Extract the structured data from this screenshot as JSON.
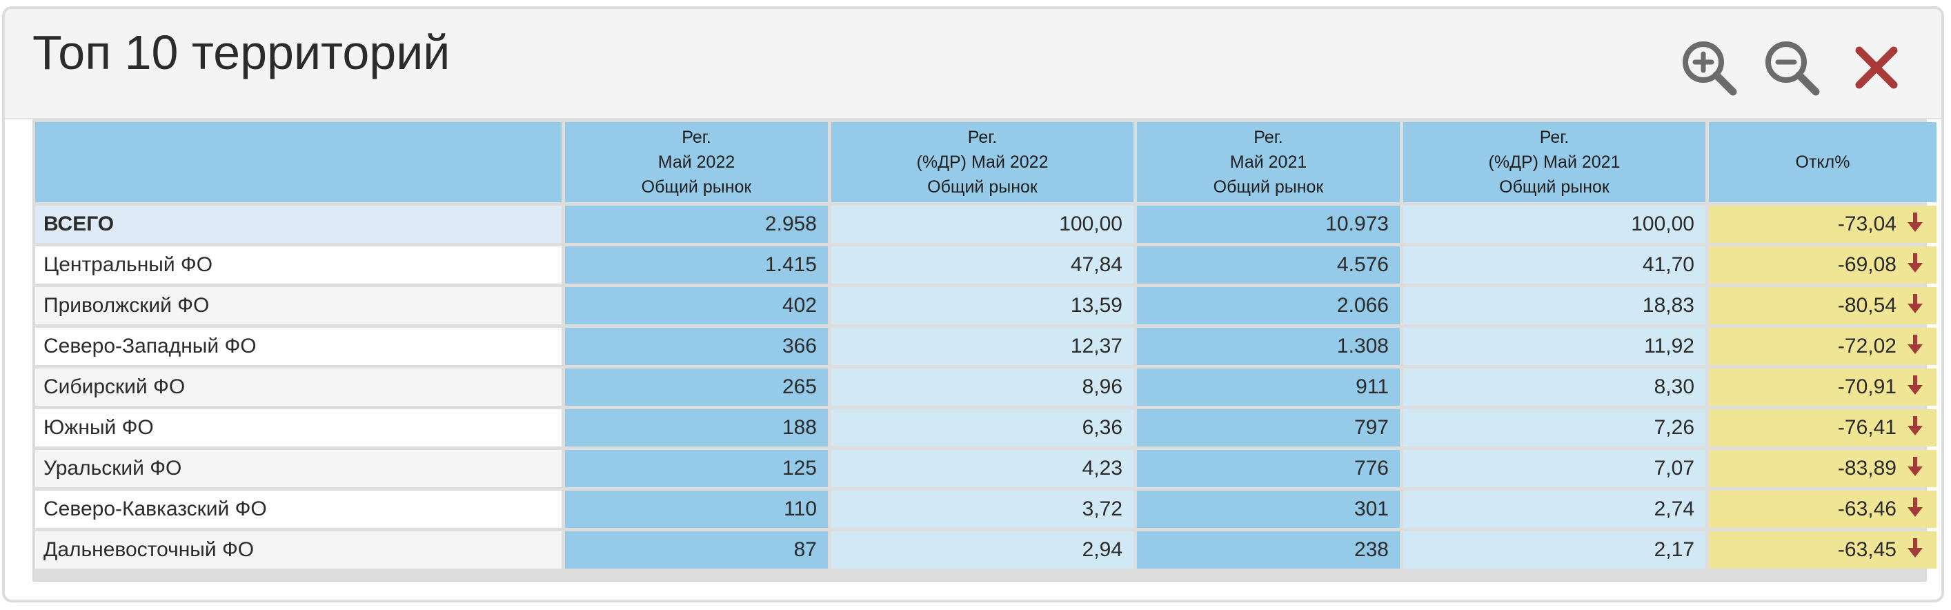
{
  "title": "Топ 10 территорий",
  "icons": {
    "zoom_in": "zoom-in-icon",
    "zoom_out": "zoom-out-icon",
    "close": "close-icon",
    "down_arrow": "arrow-down-icon"
  },
  "colors": {
    "header_cell": "#95cbe8",
    "value_light": "#d1e8f5",
    "deviation_bg": "#f0e594",
    "deviation_text": "#a53a3a",
    "close_icon": "#a83a3a",
    "zoom_icon": "#6b6b6b"
  },
  "table": {
    "columns": [
      {
        "lines": [
          "",
          "",
          ""
        ]
      },
      {
        "lines": [
          "Рег.",
          "Май 2022",
          "Общий рынок"
        ]
      },
      {
        "lines": [
          "Рег.",
          "(%ДР) Май 2022",
          "Общий рынок"
        ]
      },
      {
        "lines": [
          "Рег.",
          "Май 2021",
          "Общий рынок"
        ]
      },
      {
        "lines": [
          "Рег.",
          "(%ДР) Май 2021",
          "Общий рынок"
        ]
      },
      {
        "lines": [
          "",
          "Откл%",
          ""
        ]
      }
    ],
    "rows": [
      {
        "name": "ВСЕГО",
        "reg_2022": "2.958",
        "pct_2022": "100,00",
        "reg_2021": "10.973",
        "pct_2021": "100,00",
        "dev": "-73,04"
      },
      {
        "name": "Центральный ФО",
        "reg_2022": "1.415",
        "pct_2022": "47,84",
        "reg_2021": "4.576",
        "pct_2021": "41,70",
        "dev": "-69,08"
      },
      {
        "name": "Приволжский ФО",
        "reg_2022": "402",
        "pct_2022": "13,59",
        "reg_2021": "2.066",
        "pct_2021": "18,83",
        "dev": "-80,54"
      },
      {
        "name": "Северо-Западный ФО",
        "reg_2022": "366",
        "pct_2022": "12,37",
        "reg_2021": "1.308",
        "pct_2021": "11,92",
        "dev": "-72,02"
      },
      {
        "name": "Сибирский ФО",
        "reg_2022": "265",
        "pct_2022": "8,96",
        "reg_2021": "911",
        "pct_2021": "8,30",
        "dev": "-70,91"
      },
      {
        "name": "Южный ФО",
        "reg_2022": "188",
        "pct_2022": "6,36",
        "reg_2021": "797",
        "pct_2021": "7,26",
        "dev": "-76,41"
      },
      {
        "name": "Уральский ФО",
        "reg_2022": "125",
        "pct_2022": "4,23",
        "reg_2021": "776",
        "pct_2021": "7,07",
        "dev": "-83,89"
      },
      {
        "name": "Северо-Кавказский ФО",
        "reg_2022": "110",
        "pct_2022": "3,72",
        "reg_2021": "301",
        "pct_2021": "2,74",
        "dev": "-63,46"
      },
      {
        "name": "Дальневосточный ФО",
        "reg_2022": "87",
        "pct_2022": "2,94",
        "reg_2021": "238",
        "pct_2021": "2,17",
        "dev": "-63,45"
      }
    ]
  }
}
